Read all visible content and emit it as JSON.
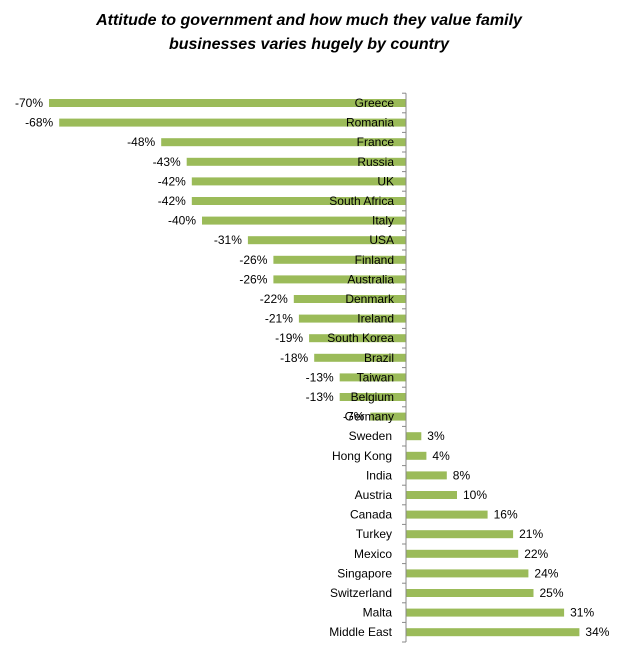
{
  "colors": {
    "bar": "#9BBB59",
    "axis": "#888888",
    "text": "#000000",
    "background": "#ffffff"
  },
  "chart_data": {
    "type": "bar",
    "orientation": "horizontal",
    "title_lines": [
      "Attitude to government and how much they value family",
      "businesses  varies hugely by country"
    ],
    "xlabel": "",
    "ylabel": "",
    "value_suffix": "%",
    "xlim": [
      -70,
      34
    ],
    "grid": false,
    "legend": "none",
    "categories": [
      "Greece",
      "Romania",
      "France",
      "Russia",
      "UK",
      "South Africa",
      "Italy",
      "USA",
      "Finland",
      "Australia",
      "Denmark",
      "Ireland",
      "South Korea",
      "Brazil",
      "Taiwan",
      "Belgium",
      "Germany",
      "Sweden",
      "Hong Kong",
      "India",
      "Austria",
      "Canada",
      "Turkey",
      "Mexico",
      "Singapore",
      "Switzerland",
      "Malta",
      "Middle East"
    ],
    "values": [
      -70,
      -68,
      -48,
      -43,
      -42,
      -42,
      -40,
      -31,
      -26,
      -26,
      -22,
      -21,
      -19,
      -18,
      -13,
      -13,
      -7,
      3,
      4,
      8,
      10,
      16,
      21,
      22,
      24,
      25,
      31,
      34
    ]
  }
}
